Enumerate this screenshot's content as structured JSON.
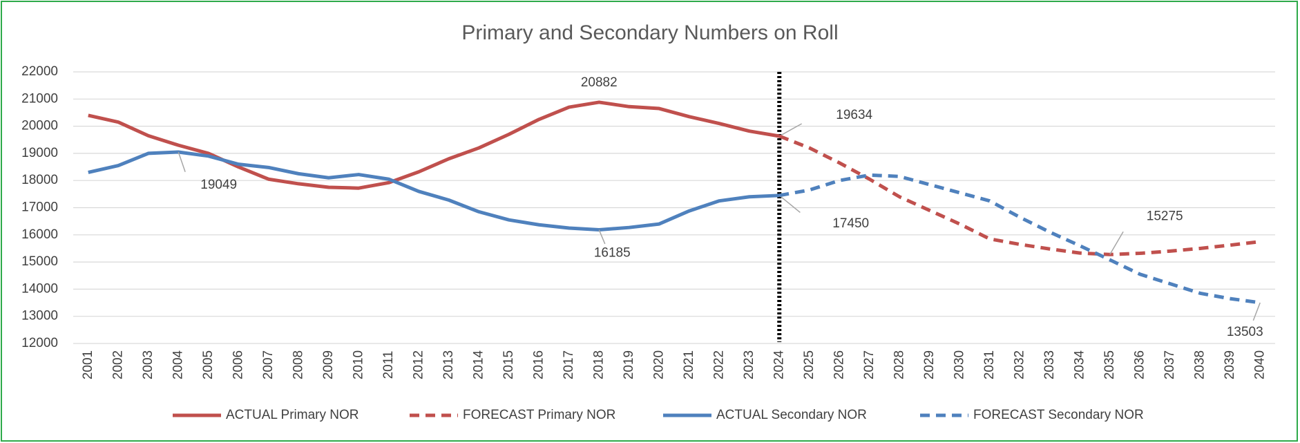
{
  "chart_data": {
    "type": "line",
    "title": "Primary and Secondary Numbers on Roll",
    "categories": [
      "2001",
      "2002",
      "2003",
      "2004",
      "2005",
      "2006",
      "2007",
      "2008",
      "2009",
      "2010",
      "2011",
      "2012",
      "2013",
      "2014",
      "2015",
      "2016",
      "2017",
      "2018",
      "2019",
      "2020",
      "2021",
      "2022",
      "2023",
      "2024",
      "2025",
      "2026",
      "2027",
      "2028",
      "2029",
      "2030",
      "2031",
      "2032",
      "2033",
      "2034",
      "2035",
      "2036",
      "2037",
      "2038",
      "2039",
      "2040"
    ],
    "series": [
      {
        "name": "ACTUAL Primary NOR",
        "color": "#c0504d",
        "dash": false,
        "labeled_points": [
          17,
          23
        ],
        "values": [
          20400,
          20150,
          19650,
          19300,
          19000,
          18500,
          18050,
          17880,
          17750,
          17720,
          17920,
          18320,
          18800,
          19200,
          19700,
          20250,
          20700,
          20882,
          20720,
          20650,
          20350,
          20100,
          19820,
          19634,
          null,
          null,
          null,
          null,
          null,
          null,
          null,
          null,
          null,
          null,
          null,
          null,
          null,
          null,
          null,
          null
        ]
      },
      {
        "name": "FORECAST Primary NOR",
        "color": "#c0504d",
        "dash": true,
        "labeled_points": [
          34
        ],
        "values": [
          null,
          null,
          null,
          null,
          null,
          null,
          null,
          null,
          null,
          null,
          null,
          null,
          null,
          null,
          null,
          null,
          null,
          null,
          null,
          null,
          null,
          null,
          null,
          19634,
          19200,
          18650,
          18050,
          17400,
          16900,
          16400,
          15850,
          15650,
          15480,
          15330,
          15275,
          15320,
          15400,
          15500,
          15620,
          15750
        ]
      },
      {
        "name": "ACTUAL Secondary NOR",
        "color": "#4f81bd",
        "dash": false,
        "labeled_points": [
          3,
          17,
          23
        ],
        "values": [
          18300,
          18550,
          19000,
          19049,
          18900,
          18600,
          18480,
          18250,
          18100,
          18220,
          18050,
          17600,
          17280,
          16850,
          16550,
          16370,
          16250,
          16185,
          16270,
          16400,
          16880,
          17250,
          17400,
          17450,
          null,
          null,
          null,
          null,
          null,
          null,
          null,
          null,
          null,
          null,
          null,
          null,
          null,
          null,
          null,
          null
        ]
      },
      {
        "name": "FORECAST Secondary NOR",
        "color": "#4f81bd",
        "dash": true,
        "labeled_points": [
          39
        ],
        "values": [
          null,
          null,
          null,
          null,
          null,
          null,
          null,
          null,
          null,
          null,
          null,
          null,
          null,
          null,
          null,
          null,
          null,
          null,
          null,
          null,
          null,
          null,
          null,
          17450,
          17650,
          18000,
          18200,
          18150,
          17850,
          17550,
          17250,
          16650,
          16100,
          15600,
          15080,
          14550,
          14200,
          13850,
          13650,
          13503
        ]
      }
    ],
    "ylim": [
      12000,
      22000
    ],
    "yticks": [
      12000,
      13000,
      14000,
      15000,
      16000,
      17000,
      18000,
      19000,
      20000,
      21000,
      22000
    ],
    "grid": true,
    "legend": "bottom"
  }
}
